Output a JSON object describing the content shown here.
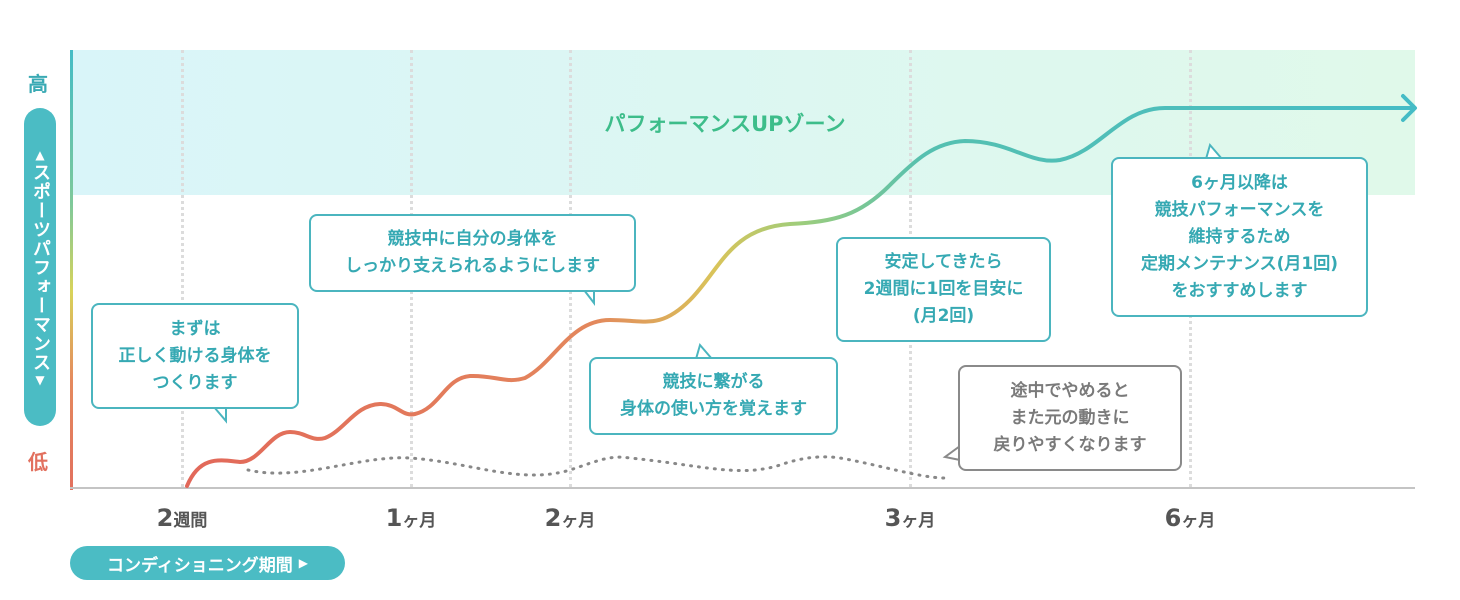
{
  "y_axis": {
    "high": "高",
    "low": "低",
    "label": "スポーツパフォーマンス",
    "up_marker": "▲",
    "down_marker": "▼"
  },
  "x_axis": {
    "ticks": [
      {
        "num": "2",
        "unit": "週間"
      },
      {
        "num": "1",
        "unit": "ヶ月"
      },
      {
        "num": "2",
        "unit": "ヶ月"
      },
      {
        "num": "3",
        "unit": "ヶ月"
      },
      {
        "num": "6",
        "unit": "ヶ月"
      }
    ],
    "label": "コンディショニング期間",
    "label_marker": "▶"
  },
  "zone_title": "パフォーマンスUPゾーン",
  "callouts": [
    {
      "lines": [
        "まずは",
        "正しく動ける身体を",
        "つくります"
      ]
    },
    {
      "lines": [
        "競技中に自分の身体を",
        "しっかり支えられるようにします"
      ]
    },
    {
      "lines": [
        "競技に繋がる",
        "身体の使い方を覚えます"
      ]
    },
    {
      "lines": [
        "安定してきたら",
        "2週間に1回を目安に",
        "(月2回)"
      ]
    },
    {
      "lines": [
        "6ヶ月以降は",
        "競技パフォーマンスを",
        "維持するため",
        "定期メンテナンス(月1回)",
        "をおすすめします"
      ]
    },
    {
      "lines": [
        "途中でやめると",
        "また元の動きに",
        "戻りやすくなります"
      ]
    }
  ],
  "colors": {
    "teal": "#4bbcc4",
    "orange": "#e2705e",
    "green": "#3dbd8a",
    "gray": "#8a8a8a"
  }
}
